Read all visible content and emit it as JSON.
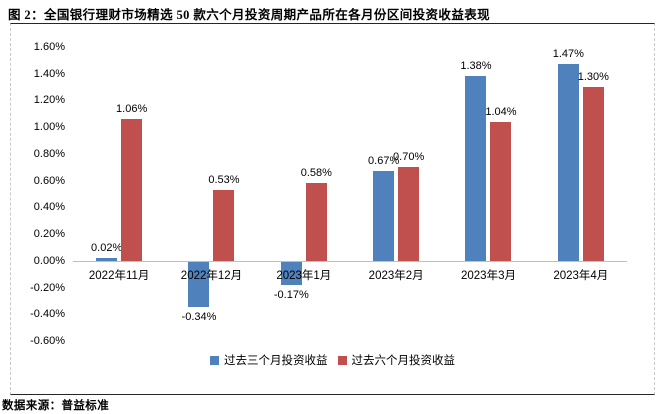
{
  "title": "图 2：全国银行理财市场精选 50 款六个月投资周期产品所在各月份区间投资收益表现",
  "source_note": "数据来源：普益标准",
  "colors": {
    "series_blue": "#4F81BD",
    "series_red": "#C0504D",
    "axis_line": "#BFBFBF",
    "frame_line": "#262626",
    "dashed_border": "#C9C9C9",
    "text": "#000000"
  },
  "chart_data": {
    "type": "bar",
    "categories": [
      "2022年11月",
      "2022年12月",
      "2023年1月",
      "2023年2月",
      "2023年3月",
      "2023年4月"
    ],
    "series": [
      {
        "name": "过去三个月投资收益",
        "color": "#4F81BD",
        "values": [
          0.02,
          -0.34,
          -0.17,
          0.67,
          1.38,
          1.47
        ],
        "labels": [
          "0.02%",
          "-0.34%",
          "-0.17%",
          "0.67%",
          "1.38%",
          "1.47%"
        ]
      },
      {
        "name": "过去六个月投资收益",
        "color": "#C0504D",
        "values": [
          1.06,
          0.53,
          0.58,
          0.7,
          1.04,
          1.3
        ],
        "labels": [
          "1.06%",
          "0.53%",
          "0.58%",
          "0.70%",
          "1.04%",
          "1.30%"
        ]
      }
    ],
    "ylim": [
      -0.6,
      1.6
    ],
    "ytick_step": 0.2,
    "ytick_labels": [
      "1.60%",
      "1.40%",
      "1.20%",
      "1.00%",
      "0.80%",
      "0.60%",
      "0.40%",
      "0.20%",
      "0.00%",
      "-0.20%",
      "-0.40%",
      "-0.60%"
    ],
    "ylabel": "",
    "xlabel": "",
    "grid": false,
    "legend_position": "bottom-center"
  }
}
